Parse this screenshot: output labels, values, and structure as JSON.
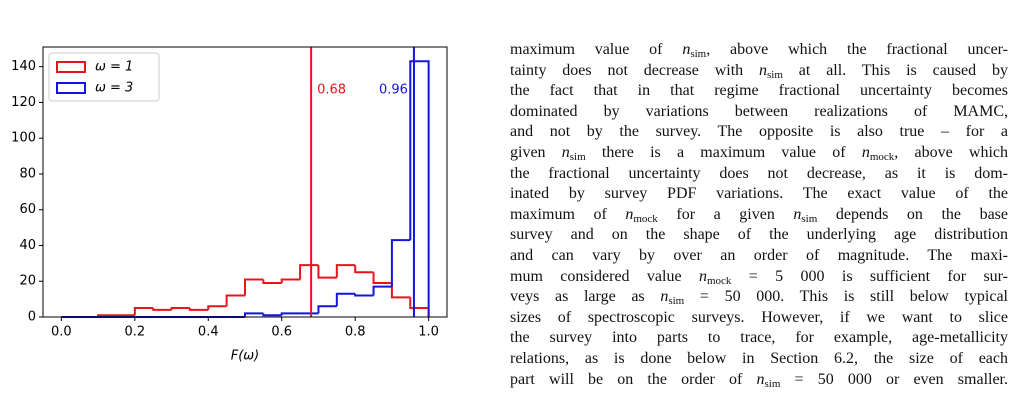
{
  "chart_data": {
    "type": "histogram",
    "xlabel": "F(ω)",
    "bins": [
      0,
      0.05,
      0.1,
      0.15,
      0.2,
      0.25,
      0.3,
      0.35,
      0.4,
      0.45,
      0.5,
      0.55,
      0.6,
      0.65,
      0.7,
      0.75,
      0.8,
      0.85,
      0.9,
      0.95,
      1.0
    ],
    "series": [
      {
        "name": "ω = 1",
        "color": "#e8141b",
        "values": [
          0,
          0,
          1,
          1,
          5,
          4,
          5,
          4,
          6,
          12,
          21,
          19,
          21,
          29,
          22,
          29,
          25,
          19,
          11,
          5
        ]
      },
      {
        "name": "ω = 3",
        "color": "#1414e0",
        "values": [
          0,
          0,
          0,
          0,
          0,
          0,
          0,
          0,
          0,
          0,
          2,
          1,
          2,
          2,
          6,
          13,
          12,
          17,
          43,
          143
        ]
      }
    ],
    "vlines": [
      {
        "value": 0.68,
        "color": "#e8141b"
      },
      {
        "value": 0.96,
        "color": "#1414e0"
      }
    ],
    "xlim": [
      -0.05,
      1.05
    ],
    "xticks": [
      {
        "value": 0,
        "label": "0.0"
      },
      0.2,
      0.4,
      0.6,
      0.8,
      {
        "value": 1,
        "label": "1.0"
      }
    ],
    "ylim": [
      0,
      151
    ],
    "yticks": [
      0,
      20,
      40,
      60,
      80,
      100,
      120,
      140
    ],
    "legend": "upper left"
  },
  "text": {
    "lines": [
      [
        "maximum value of ",
        {
          "i": "n",
          "sub": "sim"
        },
        ", above which the fractional uncer-"
      ],
      [
        "tainty does not decrease with ",
        {
          "i": "n",
          "sub": "sim"
        },
        " at all. This is caused by"
      ],
      [
        "the fact that in that regime fractional uncertainty becomes"
      ],
      [
        "dominated by variations between realizations of MAMC,"
      ],
      [
        "and not by the survey. The opposite is also true – for a"
      ],
      [
        "given ",
        {
          "i": "n",
          "sub": "sim"
        },
        " there is a maximum value of ",
        {
          "i": "n",
          "sub": "mock"
        },
        ", above which"
      ],
      [
        "the fractional uncertainty does not decrease, as it is dom-"
      ],
      [
        "inated by survey PDF variations. The exact value of the"
      ],
      [
        "maximum of ",
        {
          "i": "n",
          "sub": "mock"
        },
        " for a given ",
        {
          "i": "n",
          "sub": "sim"
        },
        " depends on the base"
      ],
      [
        "survey and on the shape of the underlying age distribution"
      ],
      [
        "and can vary by over an order of magnitude. The maxi-"
      ],
      [
        "mum considered value ",
        {
          "i": "n",
          "sub": "mock"
        },
        " = 5 000 is sufficient for sur-"
      ],
      [
        "veys as large as ",
        {
          "i": "n",
          "sub": "sim"
        },
        " = 50 000. This is still below typical"
      ],
      [
        "sizes of spectroscopic surveys. However, if we want to slice"
      ],
      [
        "the survey into parts to trace, for example, age-metallicity"
      ],
      [
        "relations, as is done below in Section 6.2, the size of each"
      ],
      [
        "part will be on the order of ",
        {
          "i": "n",
          "sub": "sim"
        },
        " = 50 000 or even smaller."
      ]
    ]
  }
}
